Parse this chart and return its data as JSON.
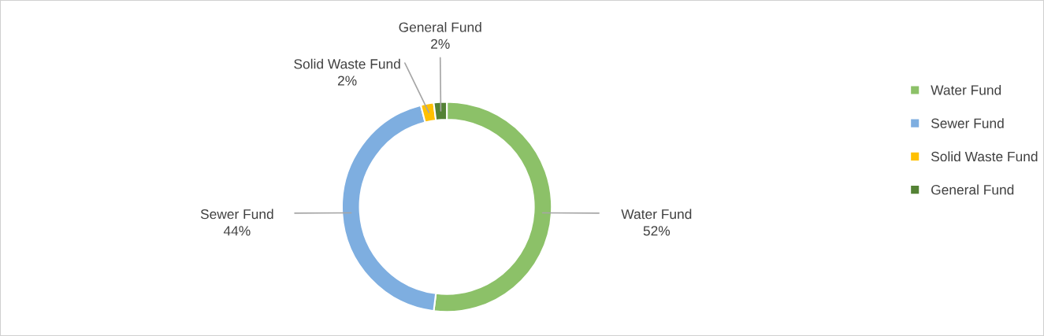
{
  "chart_data": {
    "type": "donut",
    "categories": [
      "Water Fund",
      "Sewer Fund",
      "Solid Waste Fund",
      "General Fund"
    ],
    "values": [
      52,
      44,
      2,
      2
    ],
    "colors": [
      "#8cc168",
      "#7eaee0",
      "#ffc000",
      "#548235"
    ],
    "value_labels": [
      "52%",
      "44%",
      "2%",
      "2%"
    ],
    "legend": "right"
  }
}
